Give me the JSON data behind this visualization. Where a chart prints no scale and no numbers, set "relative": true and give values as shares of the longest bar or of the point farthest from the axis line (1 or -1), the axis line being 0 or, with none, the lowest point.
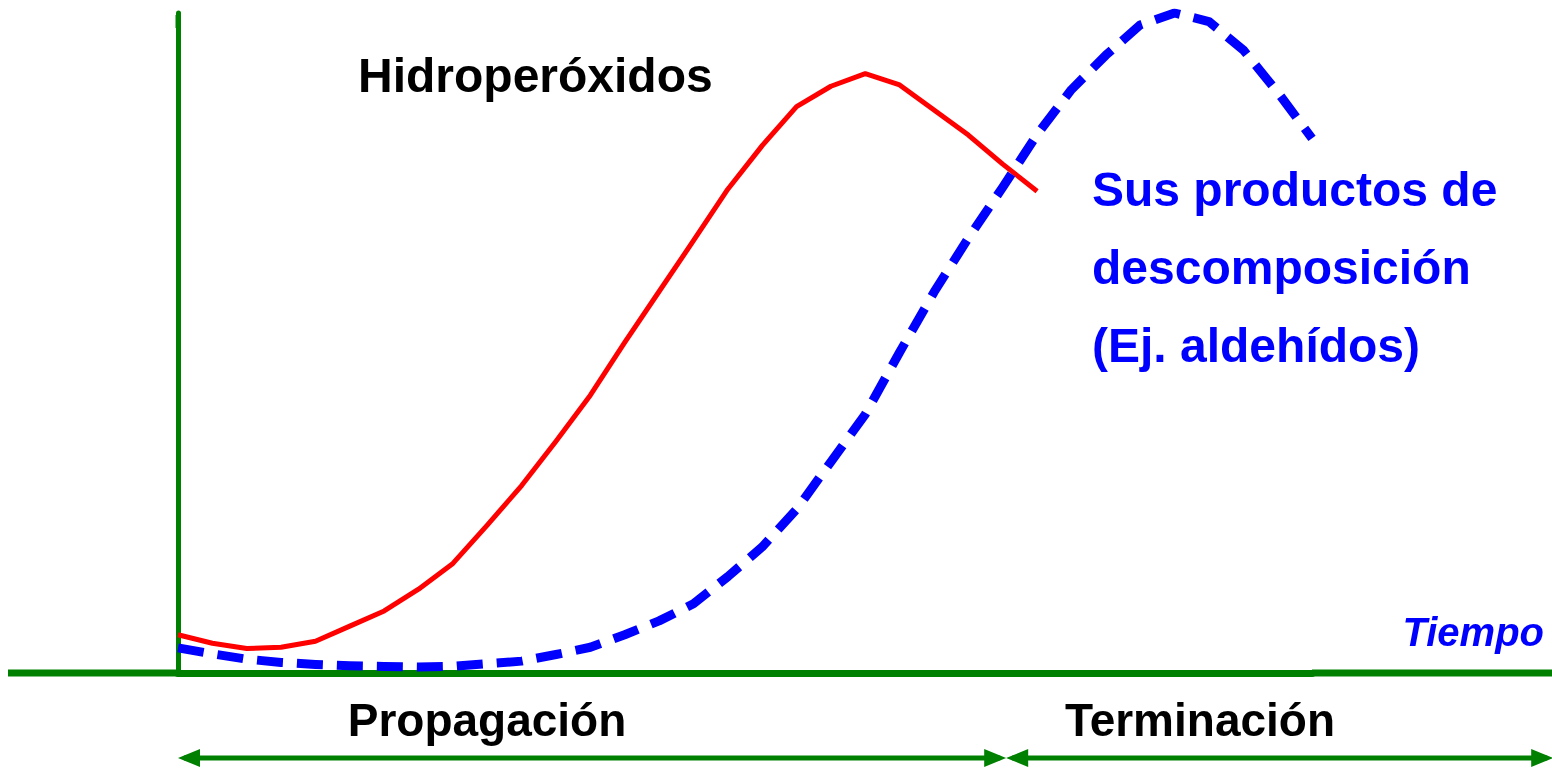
{
  "chart_data": {
    "type": "line",
    "relative": true,
    "xlabel": "Tiempo",
    "grid": false,
    "legend": false,
    "marker": "none",
    "categories": [
      null,
      null,
      null,
      null,
      null,
      null,
      null,
      null,
      null,
      null,
      null,
      null,
      null,
      null,
      null,
      null,
      null,
      null,
      null,
      null,
      null,
      null,
      null,
      null,
      null,
      null,
      null,
      null,
      null,
      null,
      null,
      null,
      null,
      null
    ],
    "series": [
      {
        "name": "Hidroperóxidos",
        "color": "#ff0000",
        "line_style": "solid",
        "values": [
          0.058,
          0.045,
          0.037,
          0.039,
          0.048,
          0.071,
          0.094,
          0.127,
          0.166,
          0.224,
          0.284,
          0.351,
          0.421,
          0.501,
          0.578,
          0.655,
          0.733,
          0.799,
          0.858,
          0.889,
          0.908,
          0.891,
          0.853,
          0.815,
          0.771,
          0.73,
          null,
          null,
          null,
          null,
          null,
          null,
          null,
          null
        ]
      },
      {
        "name": "Sus productos de descomposición (Ej. aldehídos)",
        "color": "#0000ff",
        "line_style": "dashed",
        "values": [
          0.038,
          0.029,
          0.021,
          0.016,
          0.013,
          0.011,
          0.01,
          0.009,
          0.01,
          0.014,
          0.018,
          0.028,
          0.039,
          0.058,
          0.079,
          0.105,
          0.146,
          0.191,
          0.248,
          0.32,
          0.392,
          0.486,
          0.577,
          0.659,
          0.736,
          0.816,
          0.884,
          0.936,
          0.982,
          1,
          0.987,
          0.944,
          0.88,
          0.81
        ]
      }
    ],
    "annotations": [
      "Propagación",
      "Terminación"
    ]
  }
}
